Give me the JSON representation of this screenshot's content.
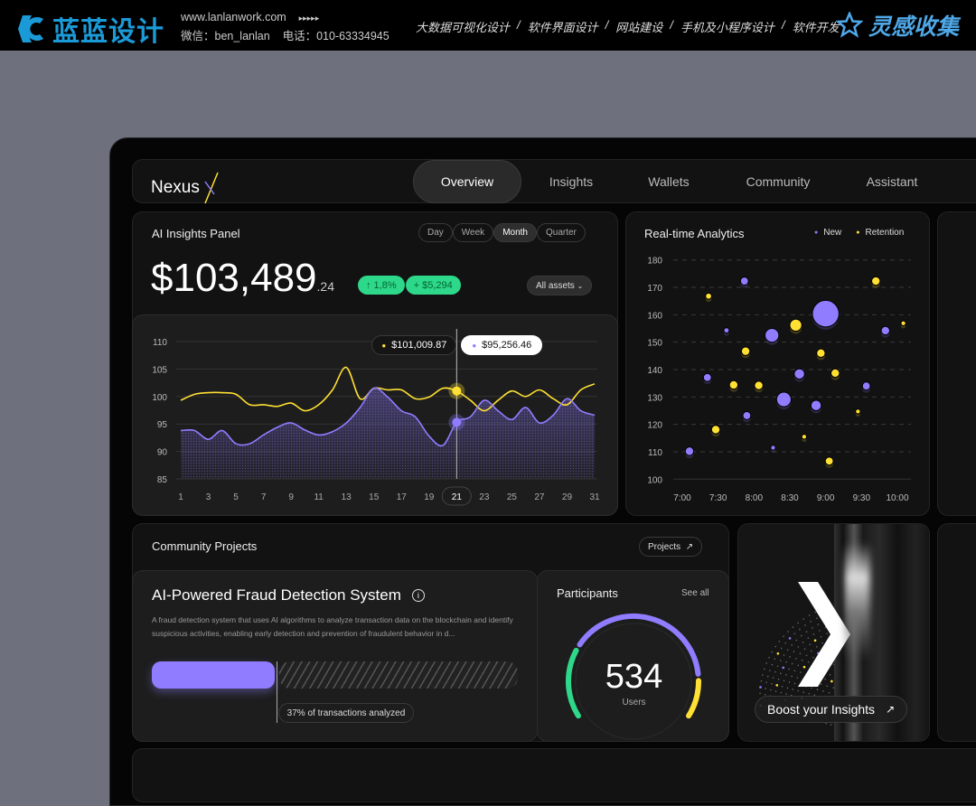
{
  "banner": {
    "brand": "蓝蓝设计",
    "url": "www.lanlanwork.com",
    "arrows": "▸▸▸▸▸",
    "wechat": "微信：ben_lanlan",
    "phone": "电话：010-63334945",
    "services": [
      "大数据可视化设计",
      "/",
      "软件界面设计",
      "/",
      "网站建设",
      "/",
      "手机及小程序设计",
      "/",
      "软件开发"
    ],
    "collect": "灵感收集",
    "brand_color": "#1b9ad8"
  },
  "nav": {
    "logo": "Nexus",
    "logo_mark": "X",
    "tabs": [
      "Overview",
      "Insights",
      "Wallets",
      "Community",
      "Assistant"
    ],
    "active": "Overview"
  },
  "insights": {
    "title": "AI Insights Panel",
    "periods": [
      "Day",
      "Week",
      "Month",
      "Quarter"
    ],
    "active_period": "Month",
    "amount": "$103,489",
    "cents": ".24",
    "change_pct": "↑ 1,8%",
    "change_abs": "+ $5,294",
    "assets": "All assets",
    "assets_icon": "chevron-down-icon"
  },
  "colors": {
    "purple": "#8f7cff",
    "yellow": "#ffe033",
    "green": "#2ed88a"
  },
  "chart_data": [
    {
      "type": "line",
      "x": [
        1,
        2,
        3,
        4,
        5,
        6,
        7,
        8,
        9,
        10,
        11,
        12,
        13,
        14,
        15,
        16,
        17,
        18,
        19,
        20,
        21,
        22,
        23,
        24,
        25,
        26,
        27,
        28,
        29,
        30,
        31
      ],
      "xticks": [
        "1",
        "3",
        "5",
        "7",
        "9",
        "11",
        "13",
        "15",
        "17",
        "19",
        "21",
        "23",
        "25",
        "27",
        "29",
        "31"
      ],
      "selected_x": "21",
      "yticks": [
        "110",
        "105",
        "100",
        "95",
        "90",
        "85"
      ],
      "ylim": [
        85,
        110
      ],
      "grid": true,
      "series": [
        {
          "color": "#ffe033",
          "values": [
            99.3,
            100.4,
            100.7,
            100.7,
            100.4,
            98.5,
            98.5,
            98.2,
            98.8,
            97.4,
            98.5,
            101.2,
            105.3,
            99.6,
            101.5,
            101.2,
            101.2,
            99.6,
            99.9,
            101.5,
            101.0,
            99.3,
            97.4,
            99.3,
            101.0,
            100.0,
            101.2,
            99.6,
            98.5,
            101.2,
            102.3
          ],
          "tooltip": "$101,009.87"
        },
        {
          "color": "#8f7cff",
          "fill": "dotted",
          "values": [
            93.8,
            93.8,
            92.2,
            93.8,
            91.4,
            91.4,
            93.0,
            94.4,
            95.2,
            93.9,
            93.0,
            93.6,
            95.2,
            98.0,
            101.5,
            99.9,
            97.4,
            96.3,
            92.8,
            91.1,
            95.3,
            96.3,
            99.3,
            97.4,
            95.8,
            98.0,
            95.2,
            96.6,
            99.6,
            97.4,
            96.6
          ],
          "tooltip": "$95,256.46"
        }
      ]
    },
    {
      "type": "scatter",
      "title": "Real-time Analytics",
      "xticks": [
        "7:00",
        "7:30",
        "8:00",
        "8:30",
        "9:00",
        "9:30",
        "10:00"
      ],
      "xlim": [
        "7:00",
        "10:00"
      ],
      "yticks": [
        "180",
        "170",
        "160",
        "150",
        "140",
        "130",
        "120",
        "110",
        "100"
      ],
      "ylim": [
        100,
        180
      ],
      "grid": "dashed",
      "legend": "top-right",
      "series": [
        {
          "name": "New",
          "color": "#8f7cff",
          "points": [
            [
              "7:06",
              110.2,
              3.2
            ],
            [
              "7:21",
              137.1,
              3
            ],
            [
              "7:37",
              154.3,
              2
            ],
            [
              "7:52",
              172.3,
              3
            ],
            [
              "7:54",
              123.2,
              3
            ],
            [
              "8:15",
              152.5,
              5.2
            ],
            [
              "8:16",
              111.5,
              1.8
            ],
            [
              "8:25",
              129.1,
              5.5
            ],
            [
              "8:38",
              138.4,
              3.9
            ],
            [
              "8:52",
              126.9,
              3.9
            ],
            [
              "9:00",
              160.4,
              10
            ],
            [
              "9:34",
              134,
              3
            ],
            [
              "9:50",
              154.2,
              3.2
            ]
          ]
        },
        {
          "name": "Retention",
          "color": "#ffe033",
          "points": [
            [
              "7:22",
              166.8,
              2.3
            ],
            [
              "7:28",
              118.1,
              3.2
            ],
            [
              "7:43",
              134.4,
              3.2
            ],
            [
              "7:53",
              146.7,
              3.2
            ],
            [
              "8:04",
              134.2,
              3.2
            ],
            [
              "8:35",
              156.2,
              4.5
            ],
            [
              "8:42",
              115.5,
              1.8
            ],
            [
              "8:56",
              146,
              3.2
            ],
            [
              "9:03",
              106.6,
              3
            ],
            [
              "9:08",
              138.7,
              3.2
            ],
            [
              "9:27",
              124.7,
              1.8
            ],
            [
              "9:42",
              172.3,
              3.2
            ],
            [
              "10:05",
              156.9,
              1.8
            ]
          ]
        }
      ]
    }
  ],
  "community": {
    "title": "Community Projects",
    "projects_btn": "Projects",
    "project_title": "AI-Powered Fraud Detection System",
    "description": "A fraud detection system that uses AI algorithms to analyze transaction data on the blockchain and identify suspicious activities, enabling early detection and prevention of fraudulent behavior in d...",
    "progress_pct": 37,
    "progress_label": "37% of transactions analyzed"
  },
  "participants": {
    "title": "Participants",
    "see_all": "See all",
    "count": "534",
    "unit": "Users",
    "segments": [
      {
        "color": "#2ed88a",
        "share": 0.26
      },
      {
        "color": "#8f7cff",
        "share": 0.6
      },
      {
        "color": "#ffe033",
        "share": 0.14
      }
    ]
  },
  "boost": {
    "label": "Boost your Insights"
  }
}
